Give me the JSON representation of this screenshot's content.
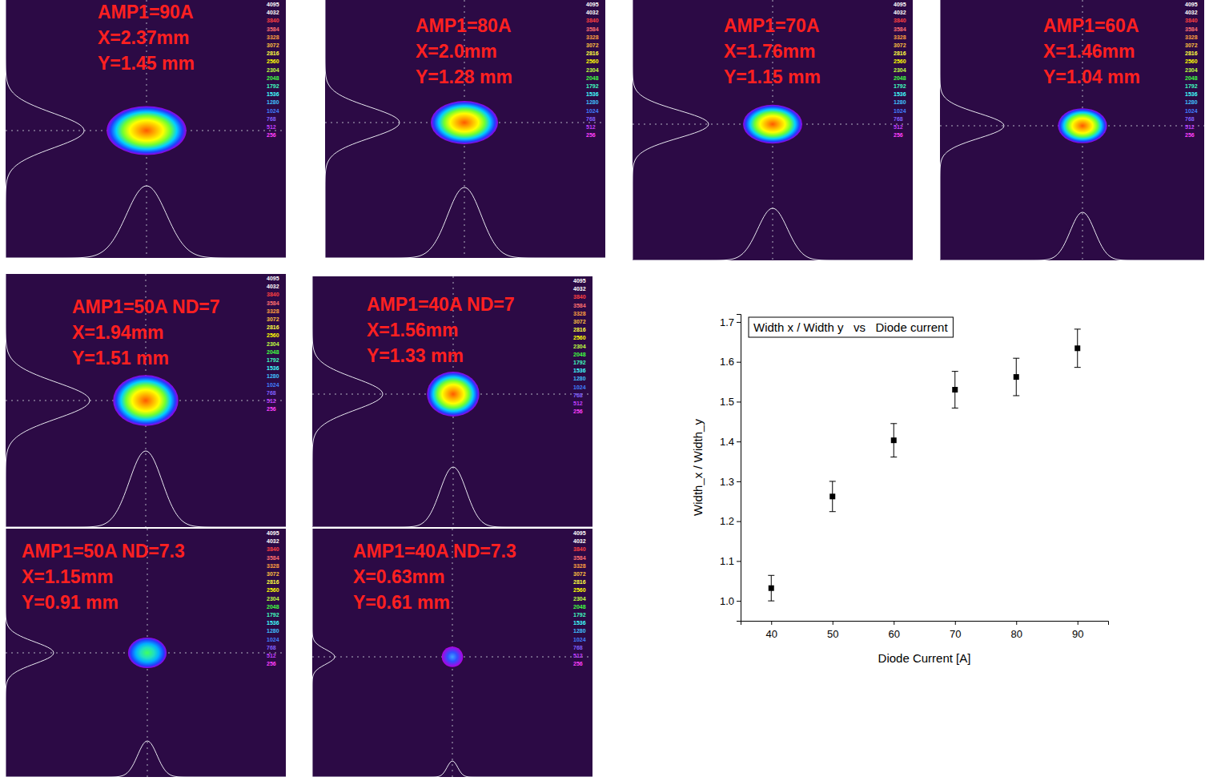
{
  "panels": [
    {
      "lines": [
        "AMP1=90A",
        "X=2.37mm",
        "Y=1.45 mm"
      ],
      "x_mm": 2.37,
      "y_mm": 1.45
    },
    {
      "lines": [
        "AMP1=80A",
        "X=2.0mm",
        "Y=1.28 mm"
      ],
      "x_mm": 2.0,
      "y_mm": 1.28
    },
    {
      "lines": [
        "AMP1=70A",
        "X=1.76mm",
        "Y=1.15 mm"
      ],
      "x_mm": 1.76,
      "y_mm": 1.15
    },
    {
      "lines": [
        "AMP1=60A",
        "X=1.46mm",
        "Y=1.04 mm"
      ],
      "x_mm": 1.46,
      "y_mm": 1.04
    },
    {
      "lines": [
        "AMP1=50A ND=7",
        "X=1.94mm",
        "Y=1.51 mm"
      ],
      "x_mm": 1.94,
      "y_mm": 1.51
    },
    {
      "lines": [
        "AMP1=40A ND=7",
        "X=1.56mm",
        "Y=1.33 mm"
      ],
      "x_mm": 1.56,
      "y_mm": 1.33
    },
    {
      "lines": [
        "AMP1=50A ND=7.3",
        "X=1.15mm",
        "Y=0.91 mm"
      ],
      "x_mm": 1.15,
      "y_mm": 0.91
    },
    {
      "lines": [
        "AMP1=40A ND=7.3",
        "X=0.63mm",
        "Y=0.61 mm"
      ],
      "x_mm": 0.63,
      "y_mm": 0.61
    }
  ],
  "color_levels": [
    4095,
    4032,
    3840,
    3584,
    3328,
    3072,
    2816,
    2560,
    2304,
    2048,
    1792,
    1536,
    1280,
    1024,
    768,
    512,
    256
  ],
  "chart_data": {
    "type": "scatter",
    "title": "Width x / Width y   vs   Diode current",
    "x_label": "Diode Current [A]",
    "y_label": "Width_x / Width_y",
    "x": [
      40,
      50,
      60,
      70,
      80,
      90
    ],
    "values": [
      1.032,
      1.262,
      1.403,
      1.53,
      1.562,
      1.634
    ],
    "errors": [
      0.032,
      0.038,
      0.042,
      0.046,
      0.047,
      0.048
    ],
    "xlim": [
      35,
      95
    ],
    "xticks": [
      40,
      50,
      60,
      70,
      80,
      90
    ],
    "ylim": [
      0.95,
      1.72
    ],
    "yticks": [
      {
        "value": 1,
        "label": "1.0"
      },
      1.1,
      1.2,
      1.3,
      1.4,
      1.5,
      1.6,
      1.7
    ],
    "marker": "square",
    "color": "#000000"
  }
}
